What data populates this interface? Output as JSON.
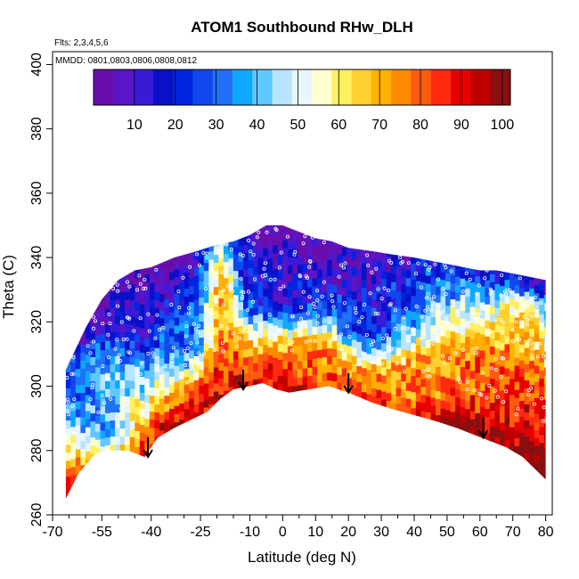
{
  "chart_data": {
    "type": "heatmap",
    "title": "ATOM1 Southbound RHw_DLH",
    "annotations": {
      "flights": "Flts: 2,3,4,5,6",
      "dates": "MMDD: 0801,0803,0806,0808,0812"
    },
    "xlabel": "Latitude (deg N)",
    "ylabel": "Theta (C)",
    "xlim": [
      -70,
      82
    ],
    "ylim": [
      260,
      404
    ],
    "x_major_ticks": [
      -70,
      -55,
      -40,
      -25,
      -10,
      0,
      10,
      20,
      30,
      40,
      50,
      60,
      70,
      80
    ],
    "x_major_tick_labels": [
      "-70",
      "-55",
      "-40",
      "-25",
      "-10",
      "0",
      "10",
      "20",
      "30",
      "40",
      "50",
      "60",
      "70",
      "80"
    ],
    "x_minor_ticks": [
      -65,
      -60,
      -50,
      -45,
      -35,
      -30,
      -20,
      -15,
      -5,
      5,
      15,
      25,
      35,
      45,
      55,
      65,
      75
    ],
    "y_ticks": [
      260,
      280,
      300,
      320,
      340,
      360,
      380,
      400
    ],
    "y_tick_labels": [
      "260",
      "280",
      "300",
      "320",
      "340",
      "360",
      "380",
      "400"
    ],
    "colorbar": {
      "range": [
        0,
        102
      ],
      "ticks": [
        10,
        20,
        30,
        40,
        50,
        60,
        70,
        80,
        90,
        100
      ],
      "tick_labels": [
        "10",
        "20",
        "30",
        "40",
        "50",
        "60",
        "70",
        "80",
        "90",
        "100"
      ],
      "colors": [
        "#6a0dad",
        "#5a15c8",
        "#3a1ad8",
        "#0a10c8",
        "#0024e0",
        "#1048f0",
        "#2070f8",
        "#10a8ff",
        "#60c8ff",
        "#b8e4ff",
        "#e8f6ff",
        "#ffffd0",
        "#fff060",
        "#ffd030",
        "#ffb000",
        "#ff8a00",
        "#ff5a10",
        "#ff2a10",
        "#e80000",
        "#c00000",
        "#8a1010"
      ]
    },
    "lower_boundary": [
      [
        -66,
        265
      ],
      [
        -62,
        273
      ],
      [
        -57,
        279
      ],
      [
        -53,
        280
      ],
      [
        -47,
        280
      ],
      [
        -42,
        278
      ],
      [
        -38,
        284
      ],
      [
        -33,
        287
      ],
      [
        -27,
        290
      ],
      [
        -23,
        292
      ],
      [
        -19,
        296
      ],
      [
        -15,
        299
      ],
      [
        -10,
        300
      ],
      [
        -6,
        301
      ],
      [
        -2,
        299
      ],
      [
        2,
        298
      ],
      [
        8,
        299
      ],
      [
        14,
        300
      ],
      [
        20,
        298
      ],
      [
        27,
        295
      ],
      [
        33,
        293
      ],
      [
        40,
        291
      ],
      [
        47,
        289
      ],
      [
        53,
        287
      ],
      [
        58,
        285
      ],
      [
        63,
        283
      ],
      [
        68,
        281
      ],
      [
        73,
        278
      ],
      [
        78,
        273
      ],
      [
        80,
        271
      ]
    ],
    "upper_boundary": [
      [
        -66,
        305
      ],
      [
        -60,
        318
      ],
      [
        -55,
        327
      ],
      [
        -50,
        333
      ],
      [
        -45,
        336
      ],
      [
        -40,
        337
      ],
      [
        -33,
        340
      ],
      [
        -26,
        342
      ],
      [
        -20,
        344
      ],
      [
        -15,
        345
      ],
      [
        -10,
        347
      ],
      [
        -5,
        350
      ],
      [
        0,
        350
      ],
      [
        5,
        348
      ],
      [
        10,
        346
      ],
      [
        15,
        345
      ],
      [
        20,
        343
      ],
      [
        27,
        342
      ],
      [
        33,
        341
      ],
      [
        40,
        340
      ],
      [
        45,
        339
      ],
      [
        50,
        338
      ],
      [
        55,
        337
      ],
      [
        60,
        336
      ],
      [
        65,
        336
      ],
      [
        70,
        335
      ],
      [
        75,
        334
      ],
      [
        80,
        333
      ]
    ],
    "field_features": [
      {
        "lat": -38,
        "theta": 330,
        "value": 5,
        "w": 14,
        "h": 14
      },
      {
        "lat": -48,
        "theta": 325,
        "value": 12,
        "w": 10,
        "h": 10
      },
      {
        "lat": -15,
        "theta": 335,
        "value": 10,
        "w": 14,
        "h": 14
      },
      {
        "lat": 0,
        "theta": 330,
        "value": 16,
        "w": 10,
        "h": 12
      },
      {
        "lat": 20,
        "theta": 335,
        "value": 8,
        "w": 16,
        "h": 12
      },
      {
        "lat": 45,
        "theta": 330,
        "value": 22,
        "w": 18,
        "h": 14
      },
      {
        "lat": 55,
        "theta": 315,
        "value": 58,
        "w": 16,
        "h": 14
      },
      {
        "lat": 72,
        "theta": 318,
        "value": 65,
        "w": 10,
        "h": 10
      },
      {
        "lat": -20,
        "theta": 308,
        "value": 90,
        "w": 6,
        "h": 40
      },
      {
        "lat": 10,
        "theta": 305,
        "value": 82,
        "w": 14,
        "h": 10
      },
      {
        "lat": -55,
        "theta": 288,
        "value": 38,
        "w": 10,
        "h": 16
      },
      {
        "lat": -62,
        "theta": 298,
        "value": 32,
        "w": 8,
        "h": 12
      },
      {
        "lat": 38,
        "theta": 300,
        "value": 75,
        "w": 20,
        "h": 10
      },
      {
        "lat": 70,
        "theta": 290,
        "value": 88,
        "w": 14,
        "h": 16
      },
      {
        "lat": 25,
        "theta": 318,
        "value": 18,
        "w": 10,
        "h": 10
      },
      {
        "lat": -32,
        "theta": 316,
        "value": 28,
        "w": 10,
        "h": 12
      },
      {
        "lat": 62,
        "theta": 305,
        "value": 80,
        "w": 18,
        "h": 8
      }
    ],
    "tropopause_arrows": [
      {
        "lat": -41,
        "theta": 278
      },
      {
        "lat": -12,
        "theta": 299
      },
      {
        "lat": 20,
        "theta": 298
      },
      {
        "lat": 61,
        "theta": 284
      }
    ],
    "grid": false,
    "legend": "none",
    "colorbar_placement": "top"
  }
}
